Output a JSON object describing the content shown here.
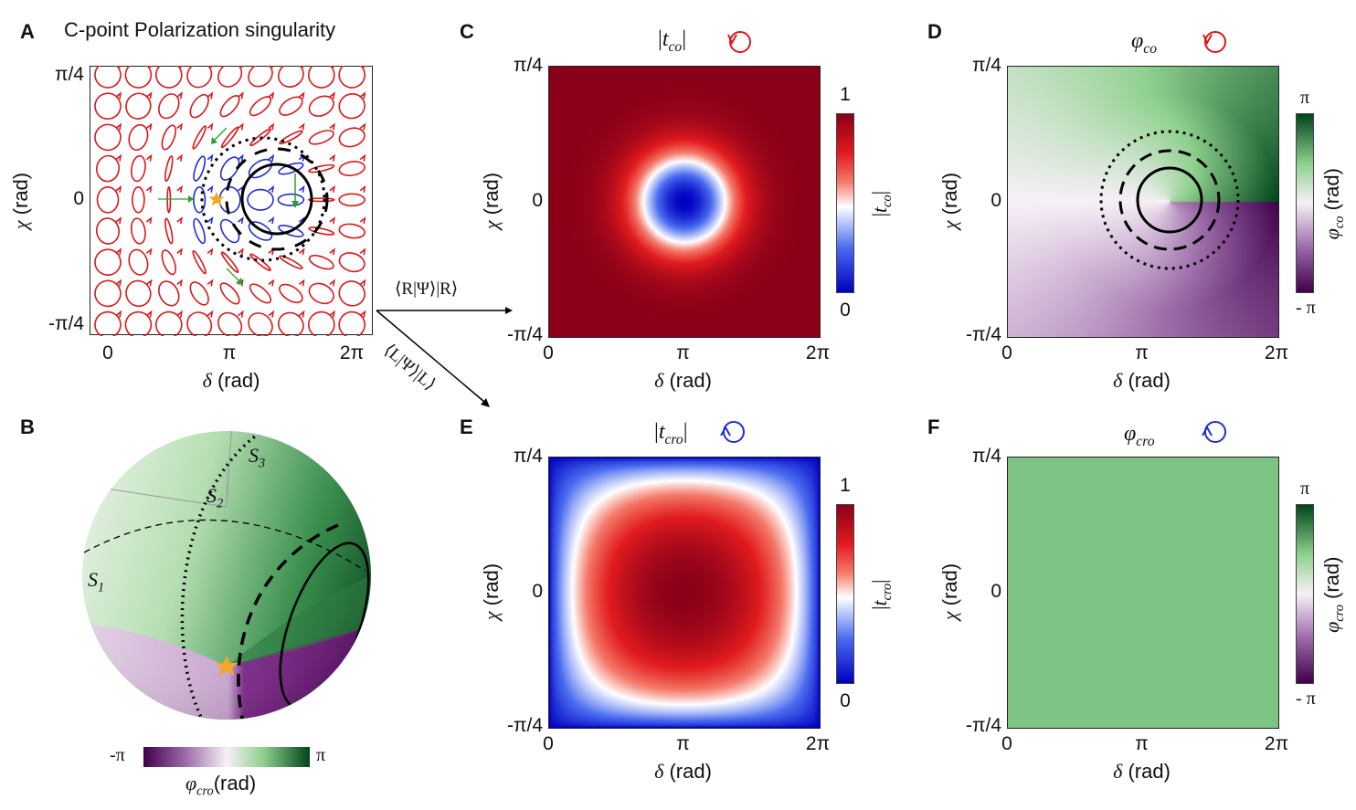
{
  "panels": {
    "A": {
      "letter": "A",
      "title": "C-point Polarization singularity",
      "xlabel_sym": "δ",
      "xlabel_unit": "(rad)",
      "ylabel_sym": "χ",
      "ylabel_unit": "(rad)",
      "xticks": [
        "0",
        "π",
        "2π"
      ],
      "yticks": [
        "π/4",
        "0",
        "-π/4"
      ]
    },
    "B": {
      "letter": "B",
      "axes": {
        "s1": "S",
        "s1_sub": "1",
        "s2": "S",
        "s2_sub": "2",
        "s3": "S",
        "s3_sub": "3"
      },
      "colorbar_min": "-π",
      "colorbar_max": "π",
      "colorbar_sym": "φ",
      "colorbar_sub": "cro",
      "colorbar_unit": "(rad)"
    },
    "C": {
      "letter": "C",
      "title_sym": "t",
      "title_sub": "co",
      "handedness_icon": "clockwise-circle-arrow-icon",
      "colorbar_min": "0",
      "colorbar_max": "1",
      "colorbar_sym": "t",
      "colorbar_sub": "co"
    },
    "D": {
      "letter": "D",
      "title_sym": "φ",
      "title_sub": "co",
      "handedness_icon": "clockwise-circle-arrow-icon",
      "colorbar_min": "- π",
      "colorbar_max": "π",
      "colorbar_sym": "φ",
      "colorbar_sub": "co",
      "colorbar_unit": "(rad)"
    },
    "E": {
      "letter": "E",
      "title_sym": "t",
      "title_sub": "cro",
      "handedness_icon": "counterclockwise-circle-arrow-icon",
      "colorbar_min": "0",
      "colorbar_max": "1",
      "colorbar_sym": "t",
      "colorbar_sub": "cro"
    },
    "F": {
      "letter": "F",
      "title_sym": "φ",
      "title_sub": "cro",
      "handedness_icon": "counterclockwise-circle-arrow-icon",
      "colorbar_min": "- π",
      "colorbar_max": "π",
      "colorbar_sym": "φ",
      "colorbar_sub": "cro",
      "colorbar_unit": "(rad)"
    }
  },
  "axes_common": {
    "xlabel_sym": "δ",
    "xlabel_unit": "(rad)",
    "ylabel_sym": "χ",
    "ylabel_unit": "(rad)",
    "xticks": [
      "0",
      "π",
      "2π"
    ],
    "yticks": [
      "π/4",
      "0",
      "-π/4"
    ]
  },
  "arrows": {
    "upper": "⟨R|Ψ⟩|R⟩",
    "lower": "⟨L|Ψ⟩|L⟩"
  },
  "colors": {
    "right_handed": "#d7191c",
    "left_handed": "#1f2fd0",
    "trajectory": "#2ca02c",
    "star": "#f5a623",
    "uniform_phase": "#7dc383",
    "purple": "#40004b",
    "green": "#00441b"
  },
  "chart_data": [
    {
      "panel": "A",
      "type": "scatter",
      "description_marks": "polarization ellipses on 9x9 grid",
      "x_range": [
        "0",
        "2π"
      ],
      "y_range": [
        "-π/4",
        "π/4"
      ],
      "singularity": {
        "x": "π",
        "y": "0"
      }
    },
    {
      "panel": "C",
      "type": "heatmap",
      "x_range": [
        "0",
        "2π"
      ],
      "y_range": [
        "-π/4",
        "π/4"
      ],
      "value_range": [
        0,
        1
      ],
      "minimum_at": {
        "x": "π",
        "y": "0"
      }
    },
    {
      "panel": "D",
      "type": "heatmap",
      "x_range": [
        "0",
        "2π"
      ],
      "y_range": [
        "-π/4",
        "π/4"
      ],
      "value_range": [
        "-π",
        "π"
      ]
    },
    {
      "panel": "E",
      "type": "heatmap",
      "x_range": [
        "0",
        "2π"
      ],
      "y_range": [
        "-π/4",
        "π/4"
      ],
      "value_range": [
        0,
        1
      ],
      "maximum_at": {
        "x": "π",
        "y": "0"
      }
    },
    {
      "panel": "F",
      "type": "heatmap",
      "x_range": [
        "0",
        "2π"
      ],
      "y_range": [
        "-π/4",
        "π/4"
      ],
      "value_range": [
        "-π",
        "π"
      ],
      "uniform_value": "≈π/2"
    }
  ]
}
